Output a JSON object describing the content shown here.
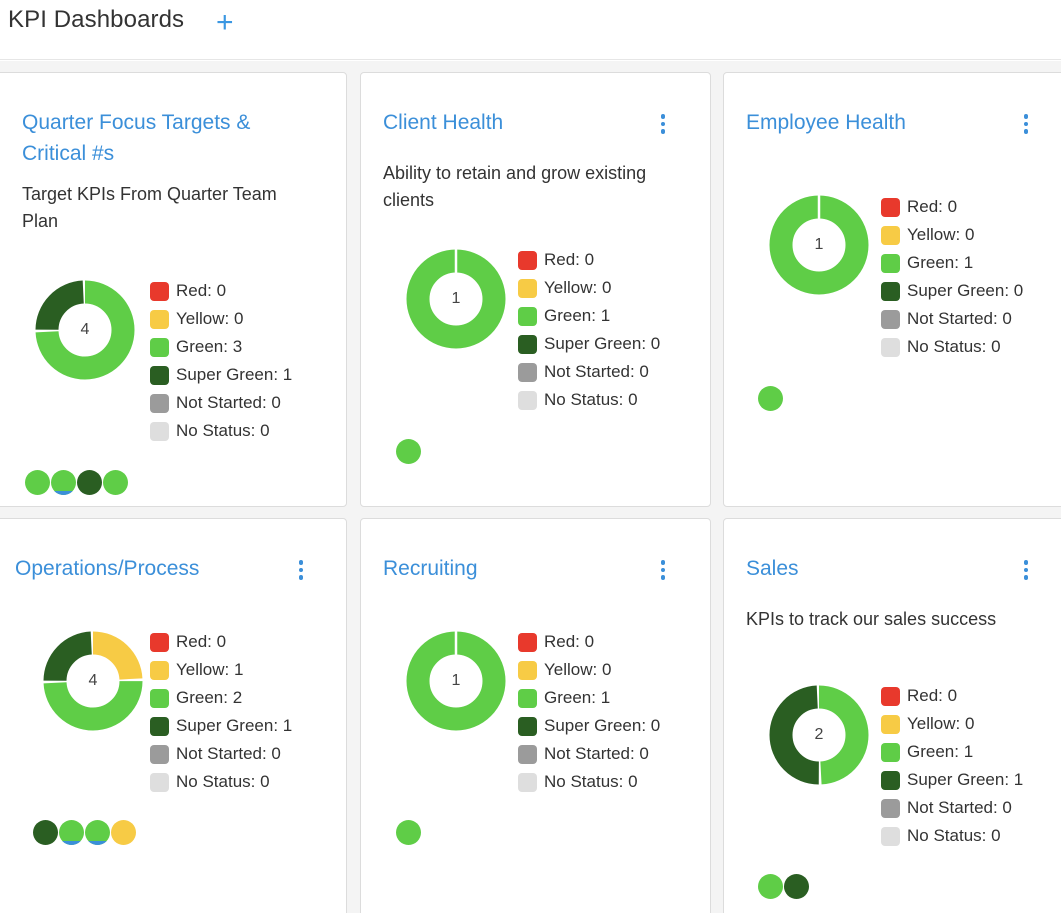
{
  "page": {
    "title": "KPI Dashboards",
    "add_icon": "plus-icon"
  },
  "colors": {
    "red": "#e8392c",
    "yellow": "#f7cb45",
    "green": "#5fcd47",
    "super_green": "#2a5e22",
    "not_started": "#9b9b9b",
    "no_status": "#dedede",
    "link": "#3b8fd9"
  },
  "cards": [
    {
      "title": "Quarter Focus Targets & Critical #s",
      "description": "Target KPIs From Quarter Team Plan",
      "has_menu": false,
      "total": "4",
      "legend": [
        "Red: 0",
        "Yellow: 0",
        "Green: 3",
        "Super Green: 1",
        "Not Started: 0",
        "No Status: 0"
      ],
      "counts": {
        "red": 0,
        "yellow": 0,
        "green": 3,
        "super_green": 1,
        "not_started": 0,
        "no_status": 0
      },
      "kpi_dots": [
        "green",
        "green",
        "super_green",
        "green"
      ]
    },
    {
      "title": "Client Health",
      "description": "Ability to retain and grow existing clients",
      "has_menu": true,
      "total": "1",
      "legend": [
        "Red: 0",
        "Yellow: 0",
        "Green: 1",
        "Super Green: 0",
        "Not Started: 0",
        "No Status: 0"
      ],
      "counts": {
        "red": 0,
        "yellow": 0,
        "green": 1,
        "super_green": 0,
        "not_started": 0,
        "no_status": 0
      },
      "kpi_dots": [
        "green"
      ]
    },
    {
      "title": "Employee Health",
      "description": "",
      "has_menu": true,
      "total": "1",
      "legend": [
        "Red: 0",
        "Yellow: 0",
        "Green: 1",
        "Super Green: 0",
        "Not Started: 0",
        "No Status: 0"
      ],
      "counts": {
        "red": 0,
        "yellow": 0,
        "green": 1,
        "super_green": 0,
        "not_started": 0,
        "no_status": 0
      },
      "kpi_dots": [
        "green"
      ]
    },
    {
      "title": "Operations/Process",
      "description": "",
      "has_menu": true,
      "total": "4",
      "legend": [
        "Red: 0",
        "Yellow: 1",
        "Green: 2",
        "Super Green: 1",
        "Not Started: 0",
        "No Status: 0"
      ],
      "counts": {
        "red": 0,
        "yellow": 1,
        "green": 2,
        "super_green": 1,
        "not_started": 0,
        "no_status": 0
      },
      "kpi_dots": [
        "super_green",
        "green",
        "green",
        "yellow"
      ]
    },
    {
      "title": "Recruiting",
      "description": "",
      "has_menu": true,
      "total": "1",
      "legend": [
        "Red: 0",
        "Yellow: 0",
        "Green: 1",
        "Super Green: 0",
        "Not Started: 0",
        "No Status: 0"
      ],
      "counts": {
        "red": 0,
        "yellow": 0,
        "green": 1,
        "super_green": 0,
        "not_started": 0,
        "no_status": 0
      },
      "kpi_dots": [
        "green"
      ]
    },
    {
      "title": "Sales",
      "description": "KPIs to track our sales success",
      "has_menu": true,
      "total": "2",
      "legend": [
        "Red: 0",
        "Yellow: 0",
        "Green: 1",
        "Super Green: 1",
        "Not Started: 0",
        "No Status: 0"
      ],
      "counts": {
        "red": 0,
        "yellow": 0,
        "green": 1,
        "super_green": 1,
        "not_started": 0,
        "no_status": 0
      },
      "kpi_dots": [
        "green",
        "super_green"
      ]
    }
  ]
}
